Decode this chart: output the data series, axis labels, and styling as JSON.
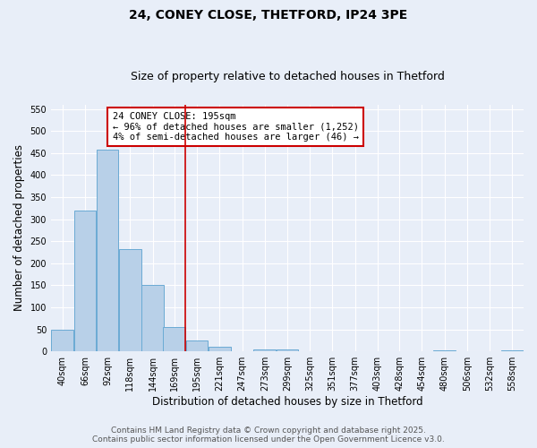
{
  "title": "24, CONEY CLOSE, THETFORD, IP24 3PE",
  "subtitle": "Size of property relative to detached houses in Thetford",
  "xlabel": "Distribution of detached houses by size in Thetford",
  "ylabel": "Number of detached properties",
  "bin_labels": [
    "40sqm",
    "66sqm",
    "92sqm",
    "118sqm",
    "144sqm",
    "169sqm",
    "195sqm",
    "221sqm",
    "247sqm",
    "273sqm",
    "299sqm",
    "325sqm",
    "351sqm",
    "377sqm",
    "403sqm",
    "428sqm",
    "454sqm",
    "480sqm",
    "506sqm",
    "532sqm",
    "558sqm"
  ],
  "bin_left_edges": [
    40,
    66,
    92,
    118,
    144,
    169,
    195,
    221,
    247,
    273,
    299,
    325,
    351,
    377,
    403,
    428,
    454,
    480,
    506,
    532,
    558
  ],
  "bar_heights": [
    50,
    320,
    457,
    233,
    150,
    55,
    25,
    10,
    0,
    5,
    5,
    0,
    0,
    0,
    0,
    0,
    0,
    2,
    0,
    0,
    2
  ],
  "bar_color": "#b8d0e8",
  "bar_edge_color": "#6aaad4",
  "vline_x": 195,
  "vline_color": "#cc0000",
  "ylim": [
    0,
    560
  ],
  "yticks": [
    0,
    50,
    100,
    150,
    200,
    250,
    300,
    350,
    400,
    450,
    500,
    550
  ],
  "annotation_title": "24 CONEY CLOSE: 195sqm",
  "annotation_line1": "← 96% of detached houses are smaller (1,252)",
  "annotation_line2": "4% of semi-detached houses are larger (46) →",
  "annotation_box_color": "#ffffff",
  "annotation_box_edge": "#cc0000",
  "footer_line1": "Contains HM Land Registry data © Crown copyright and database right 2025.",
  "footer_line2": "Contains public sector information licensed under the Open Government Licence v3.0.",
  "bg_color": "#e8eef8",
  "grid_color": "#ffffff",
  "title_fontsize": 10,
  "subtitle_fontsize": 9,
  "label_fontsize": 8.5,
  "tick_fontsize": 7,
  "annotation_fontsize": 7.5,
  "footer_fontsize": 6.5
}
